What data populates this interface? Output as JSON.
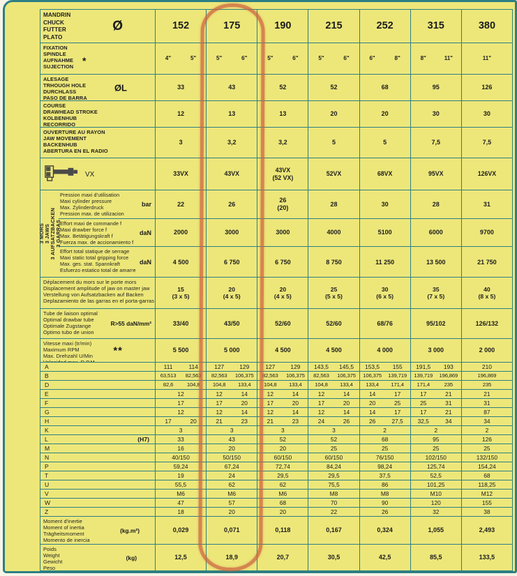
{
  "palette": {
    "paper": "#EDE77A",
    "line": "#2D7F83",
    "marker": "#CC5F3E",
    "text": "#1d1d1d"
  },
  "annotation": {
    "highlighted_column": "175"
  },
  "table": {
    "columns": [
      "152",
      "175",
      "190",
      "215",
      "252",
      "315",
      "380"
    ],
    "header": {
      "labels": [
        "MANDRIN",
        "CHUCK",
        "FUTTER",
        "PLATO"
      ],
      "symbol": "Ø"
    },
    "rows": [
      {
        "id": "spindle",
        "labels": [
          "FIXATION",
          "SPINDLE",
          "AUFNAHME",
          "SUJECTION"
        ],
        "unit": "*",
        "values": [
          [
            "4\"",
            "5\""
          ],
          [
            "5\"",
            "6\""
          ],
          [
            "5\"",
            "6\""
          ],
          [
            "5\"",
            "6\""
          ],
          [
            "6\"",
            "8\""
          ],
          [
            "8\"",
            "11\""
          ],
          "11\""
        ]
      },
      {
        "id": "bore",
        "labels": [
          "ALESAGE",
          "TRHOUGH HOLE",
          "DURCHLASS",
          "PASO DE BARRA"
        ],
        "unit": "ØL",
        "values": [
          "33",
          "43",
          "52",
          "52",
          "68",
          "95",
          "126"
        ]
      },
      {
        "id": "stroke",
        "labels": [
          "COURSE",
          "DRAWHEAD STROKE",
          "KOLBENHUB",
          "RECORRIDO"
        ],
        "values": [
          "12",
          "13",
          "13",
          "20",
          "20",
          "30",
          "30"
        ]
      },
      {
        "id": "jaw",
        "labels": [
          "OUVERTURE AU RAYON",
          "JAW MOVEMENT",
          "BACKENHUB",
          "ABERTURA EN EL RADIO"
        ],
        "values": [
          "3",
          "3,2",
          "3,2",
          "5",
          "5",
          "7,5",
          "7,5"
        ]
      },
      {
        "id": "vx",
        "label": "VX",
        "icon": "drawbar-cylinder-icon",
        "values": [
          "33VX",
          "43VX",
          "43VX\n(52 VX)",
          "52VX",
          "68VX",
          "95VX",
          "126VX"
        ]
      },
      {
        "id": "group",
        "side_labels": [
          "3 MORS",
          "3 JAWS",
          "3 AUFSATZBACKEN",
          "3 GARRAS"
        ],
        "subrows": [
          {
            "labels": [
              "Pression maxi d'utilisation",
              "Maxi cylinder pressure",
              "Max. Zylinderdruck",
              "Pression max. de utilizacion"
            ],
            "unit": "bar",
            "values": [
              "22",
              "26",
              "26\n(20)",
              "28",
              "30",
              "28",
              "31"
            ]
          },
          {
            "labels": [
              "Effort maxi de commande f",
              "Maxi drawber force f",
              "Max. Betätigungskraft f",
              "Fuerza max. de accionamiento f"
            ],
            "unit": "daN",
            "values": [
              "2000",
              "3000",
              "3000",
              "4000",
              "5100",
              "6000",
              "9700"
            ]
          },
          {
            "labels": [
              "Effort total statique de serrage",
              "Maxi static total gripping force",
              "Max. ges. stat. Spannkraft",
              "Esfuerzo estatico total de amarre"
            ],
            "unit": "daN",
            "values": [
              "4 500",
              "6 750",
              "6 750",
              "8 750",
              "11 250",
              "13 500",
              "21 750"
            ]
          }
        ]
      },
      {
        "id": "disp",
        "labels": [
          "Déplacement du mors sur le porte mors",
          "Displacement amplitude of jaw on master jaw",
          "Verstellung von Aufsatzbacken auf Backen",
          "Deplazamiento de las garras en el porta-garras"
        ],
        "values": [
          "15\n(3 x 5)",
          "20\n(4 x 5)",
          "20\n(4 x 5)",
          "25\n(5 x 5)",
          "30\n(6 x 5)",
          "35\n(7 x 5)",
          "40\n(8 x 5)"
        ]
      },
      {
        "id": "tube",
        "labels": [
          "Tube de liaison optimal",
          "Optimal drawbar tube",
          "Optimale Zugstange",
          "Optimo tubo de union"
        ],
        "unit": "R>55 daN/mm²",
        "values": [
          "33/40",
          "43/50",
          "52/60",
          "52/60",
          "68/76",
          "95/102",
          "126/132"
        ]
      },
      {
        "id": "speed",
        "labels": [
          "Vitesse maxi (tr/min)",
          "Maximum RPM",
          "Max. Drehzahl U/Min",
          "Velocidad max. R.P.M."
        ],
        "unit": "**",
        "values": [
          "5 500",
          "5 000",
          "4 500",
          "4 500",
          "4 000",
          "3 000",
          "2 000"
        ]
      }
    ],
    "letter_rows": [
      {
        "label": "A",
        "values": [
          [
            "111",
            "114"
          ],
          [
            "127",
            "129"
          ],
          [
            "127",
            "129"
          ],
          [
            "143,5",
            "145,5"
          ],
          [
            "153,5",
            "155"
          ],
          [
            "191,5",
            "193"
          ],
          "210"
        ]
      },
      {
        "label": "B",
        "values": [
          [
            "63,513",
            "82,563"
          ],
          [
            "82,563",
            "106,375"
          ],
          [
            "82,563",
            "106,375"
          ],
          [
            "82,563",
            "106,375"
          ],
          [
            "106,375",
            "139,719"
          ],
          [
            "139,719",
            "196,869"
          ],
          "196,869"
        ]
      },
      {
        "label": "D",
        "values": [
          [
            "82,6",
            "104,8"
          ],
          [
            "104,8",
            "133,4"
          ],
          [
            "104,8",
            "133,4"
          ],
          [
            "104,8",
            "133,4"
          ],
          [
            "133,4",
            "171,4"
          ],
          [
            "171,4",
            "235"
          ],
          "235"
        ]
      },
      {
        "label": "E",
        "values": [
          "12",
          [
            "12",
            "14"
          ],
          [
            "12",
            "14"
          ],
          [
            "12",
            "14"
          ],
          [
            "14",
            "17"
          ],
          [
            "17",
            "21"
          ],
          "21"
        ]
      },
      {
        "label": "F",
        "values": [
          "17",
          [
            "17",
            "20"
          ],
          [
            "17",
            "20"
          ],
          [
            "17",
            "20"
          ],
          [
            "20",
            "25"
          ],
          [
            "25",
            "31"
          ],
          "31"
        ]
      },
      {
        "label": "G",
        "values": [
          "12",
          [
            "12",
            "14"
          ],
          [
            "12",
            "14"
          ],
          [
            "12",
            "14"
          ],
          [
            "14",
            "17"
          ],
          [
            "17",
            "21"
          ],
          "87"
        ]
      },
      {
        "label": "H",
        "values": [
          [
            "17",
            "20"
          ],
          [
            "21",
            "23"
          ],
          [
            "21",
            "23"
          ],
          [
            "24",
            "26"
          ],
          [
            "26",
            "27,5"
          ],
          [
            "32,5",
            "34"
          ],
          "34"
        ]
      },
      {
        "label": "K",
        "values": [
          "3",
          "3",
          "3",
          "3",
          "2",
          "2",
          "2"
        ]
      },
      {
        "label": "L",
        "unit": "(H7)",
        "values": [
          "33",
          "43",
          "52",
          "52",
          "68",
          "95",
          "126"
        ]
      },
      {
        "label": "M",
        "values": [
          "16",
          "20",
          "20",
          "25",
          "25",
          "25",
          "25"
        ]
      },
      {
        "label": "N",
        "values": [
          "40/150",
          "50/150",
          "60/150",
          "60/150",
          "76/150",
          "102/150",
          "132/150"
        ]
      },
      {
        "label": "P",
        "values": [
          "59,24",
          "67,24",
          "72,74",
          "84,24",
          "98,24",
          "125,74",
          "154,24"
        ]
      },
      {
        "label": "T",
        "values": [
          "19",
          "24",
          "29,5",
          "29,5",
          "37,5",
          "52,5",
          "68"
        ]
      },
      {
        "label": "U",
        "values": [
          "55,5",
          "62",
          "62",
          "75,5",
          "86",
          "101,25",
          "118,25"
        ]
      },
      {
        "label": "V",
        "values": [
          "M6",
          "M6",
          "M6",
          "M8",
          "M8",
          "M10",
          "M12"
        ]
      },
      {
        "label": "W",
        "values": [
          "47",
          "57",
          "68",
          "70",
          "90",
          "120",
          "155"
        ]
      },
      {
        "label": "Z",
        "values": [
          "18",
          "20",
          "20",
          "22",
          "26",
          "32",
          "38"
        ]
      }
    ],
    "bottom_rows": [
      {
        "id": "moment",
        "labels": [
          "Moment d'inertie",
          "Moment of inertia",
          "Trägheitsmoment",
          "Momento de inercia"
        ],
        "unit": "(kg.m²)",
        "values": [
          "0,029",
          "0,071",
          "0,118",
          "0,167",
          "0,324",
          "1,055",
          "2,493"
        ]
      },
      {
        "id": "weight",
        "labels": [
          "Poids",
          "Weight",
          "Gewicht",
          "Peso"
        ],
        "unit": "(kg)",
        "values": [
          "12,5",
          "18,9",
          "20,7",
          "30,5",
          "42,5",
          "85,5",
          "133,5"
        ]
      }
    ]
  }
}
